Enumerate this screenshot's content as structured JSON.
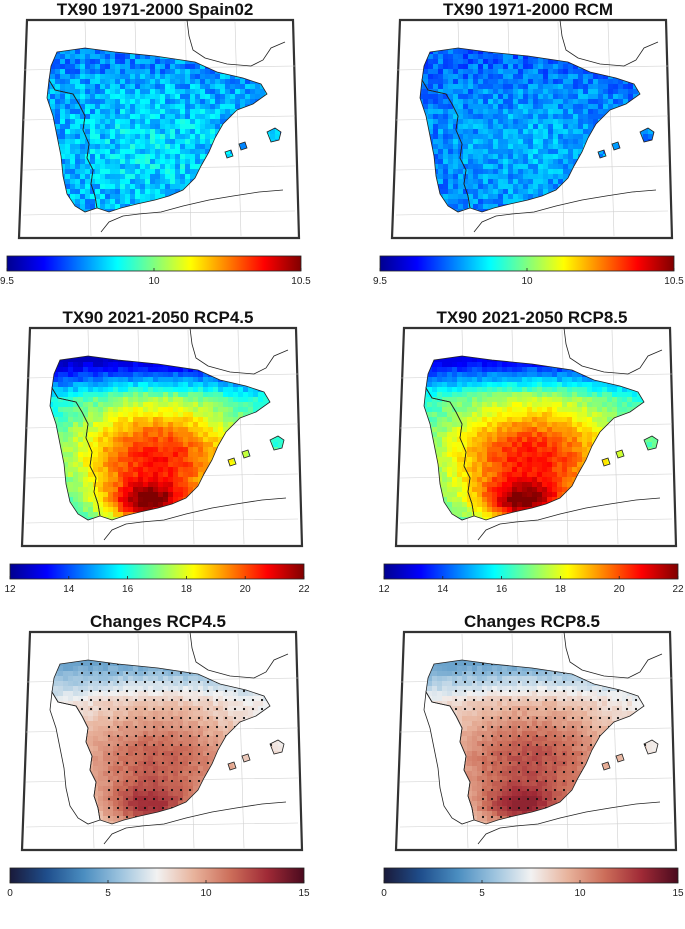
{
  "palettes": {
    "jet": [
      "#00008f",
      "#0000ff",
      "#0080ff",
      "#00ffff",
      "#80ff80",
      "#ffff00",
      "#ff8000",
      "#ff0000",
      "#800000"
    ],
    "diverging": [
      "#1a1a3a",
      "#1f4e8c",
      "#4a8dc0",
      "#9cc3de",
      "#f2f2f2",
      "#e8b39c",
      "#cc6e5a",
      "#a02a36",
      "#4a0a1e"
    ]
  },
  "chart_data": [
    {
      "type": "heatmap",
      "title": "TX90 1971-2000 Spain02",
      "palette": "jet",
      "colorbar": {
        "ticks": [
          9.5,
          10,
          10.5
        ],
        "range": [
          9.5,
          10.5
        ]
      },
      "field_range": [
        9.55,
        10.15
      ],
      "stippling": false
    },
    {
      "type": "heatmap",
      "title": "TX90 1971-2000 RCM",
      "palette": "jet",
      "colorbar": {
        "ticks": [
          9.5,
          10,
          10.5
        ],
        "range": [
          9.5,
          10.5
        ]
      },
      "field_range": [
        9.55,
        10.05
      ],
      "stippling": false
    },
    {
      "type": "heatmap",
      "title": "TX90 2021-2050 RCP4.5",
      "palette": "jet",
      "colorbar": {
        "ticks": [
          12,
          14,
          16,
          18,
          20,
          22
        ],
        "range": [
          12,
          22
        ]
      },
      "field_range": [
        12.5,
        22
      ],
      "stippling": false
    },
    {
      "type": "heatmap",
      "title": "TX90 2021-2050 RCP8.5",
      "palette": "jet",
      "colorbar": {
        "ticks": [
          12,
          14,
          16,
          18,
          20,
          22
        ],
        "range": [
          12,
          22
        ]
      },
      "field_range": [
        13,
        22
      ],
      "stippling": false
    },
    {
      "type": "heatmap",
      "title": "Changes RCP4.5",
      "palette": "diverging",
      "colorbar": {
        "ticks": [
          0,
          5,
          10,
          15
        ],
        "range": [
          0,
          15
        ]
      },
      "field_range": [
        4.5,
        13
      ],
      "stippling": true
    },
    {
      "type": "heatmap",
      "title": "Changes RCP8.5",
      "palette": "diverging",
      "colorbar": {
        "ticks": [
          0,
          5,
          10,
          15
        ],
        "range": [
          0,
          15
        ]
      },
      "field_range": [
        4.5,
        13.5
      ],
      "stippling": true
    }
  ]
}
